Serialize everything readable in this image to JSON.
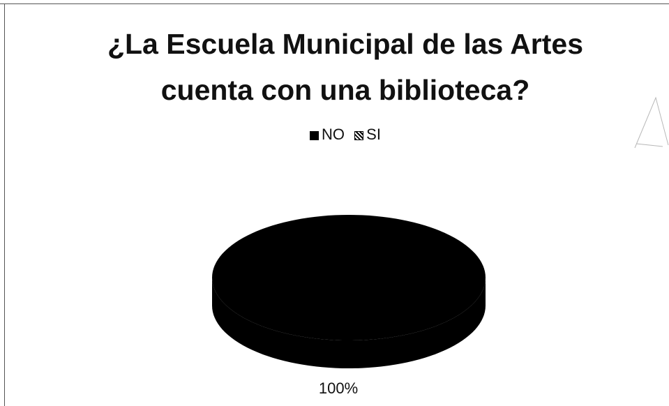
{
  "chart_data": {
    "type": "pie",
    "title_lines": [
      "¿La Escuela Municipal de las Artes",
      "cuenta con una biblioteca?"
    ],
    "legend": [
      {
        "label": "NO",
        "color": "#000000",
        "pattern": "solid"
      },
      {
        "label": "SI",
        "color": "#000000",
        "pattern": "hatched"
      }
    ],
    "slices": [
      {
        "label": "NO",
        "value": 100,
        "data_label": "100%",
        "color": "#000000"
      },
      {
        "label": "SI",
        "value": 0,
        "data_label": "",
        "color": "#000000"
      }
    ],
    "legend_position": "top",
    "style": "3d"
  }
}
